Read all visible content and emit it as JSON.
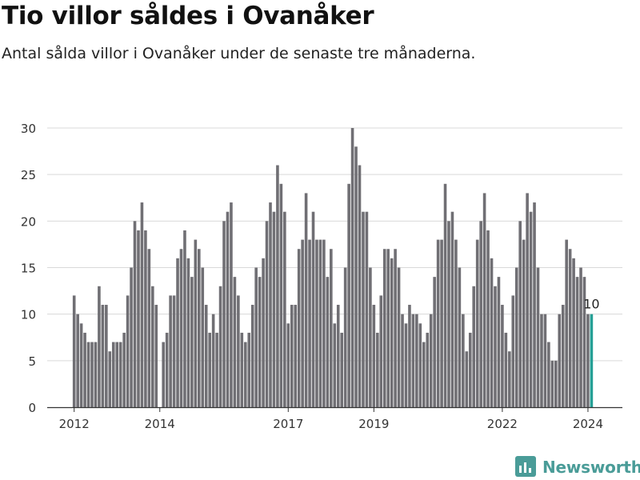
{
  "header": {
    "title": "Tio villor såldes i Ovanåker",
    "subtitle": "Antal sålda villor i Ovanåker under de senaste tre månaderna."
  },
  "brand": {
    "name": "Newsworthy",
    "icon": "bar-chart-logo-icon",
    "color": "#4a9c98"
  },
  "chart_data": {
    "type": "bar",
    "title": "Tio villor såldes i Ovanåker",
    "subtitle": "Antal sålda villor i Ovanåker under de senaste tre månaderna.",
    "xlabel": "",
    "ylabel": "",
    "ylim": [
      0,
      30
    ],
    "yticks": [
      0,
      5,
      10,
      15,
      20,
      25,
      30
    ],
    "xtick_labels": [
      {
        "label": "2012",
        "index": 0
      },
      {
        "label": "2014",
        "index": 24
      },
      {
        "label": "2017",
        "index": 60
      },
      {
        "label": "2019",
        "index": 84
      },
      {
        "label": "2022",
        "index": 120
      },
      {
        "label": "2024",
        "index": 144
      }
    ],
    "grid": "horizontal",
    "bar_color": "#706f74",
    "highlight_color": "#26a096",
    "highlight_label": "10",
    "values": [
      12,
      10,
      9,
      8,
      7,
      7,
      7,
      13,
      11,
      11,
      6,
      7,
      7,
      7,
      8,
      12,
      15,
      20,
      19,
      22,
      19,
      17,
      13,
      11,
      0,
      7,
      8,
      12,
      12,
      16,
      17,
      19,
      16,
      14,
      18,
      17,
      15,
      11,
      8,
      10,
      8,
      13,
      20,
      21,
      22,
      14,
      12,
      8,
      7,
      8,
      11,
      15,
      14,
      16,
      20,
      22,
      21,
      26,
      24,
      21,
      9,
      11,
      11,
      17,
      18,
      23,
      18,
      21,
      18,
      18,
      18,
      14,
      17,
      9,
      11,
      8,
      15,
      24,
      30,
      28,
      26,
      21,
      21,
      15,
      11,
      8,
      12,
      17,
      17,
      16,
      17,
      15,
      10,
      9,
      11,
      10,
      10,
      9,
      7,
      8,
      10,
      14,
      18,
      18,
      24,
      20,
      21,
      18,
      15,
      10,
      6,
      8,
      13,
      18,
      20,
      23,
      19,
      16,
      13,
      14,
      11,
      8,
      6,
      12,
      15,
      20,
      18,
      23,
      21,
      22,
      15,
      10,
      10,
      7,
      5,
      5,
      10,
      11,
      18,
      17,
      16,
      14,
      15,
      14,
      10,
      10
    ]
  }
}
